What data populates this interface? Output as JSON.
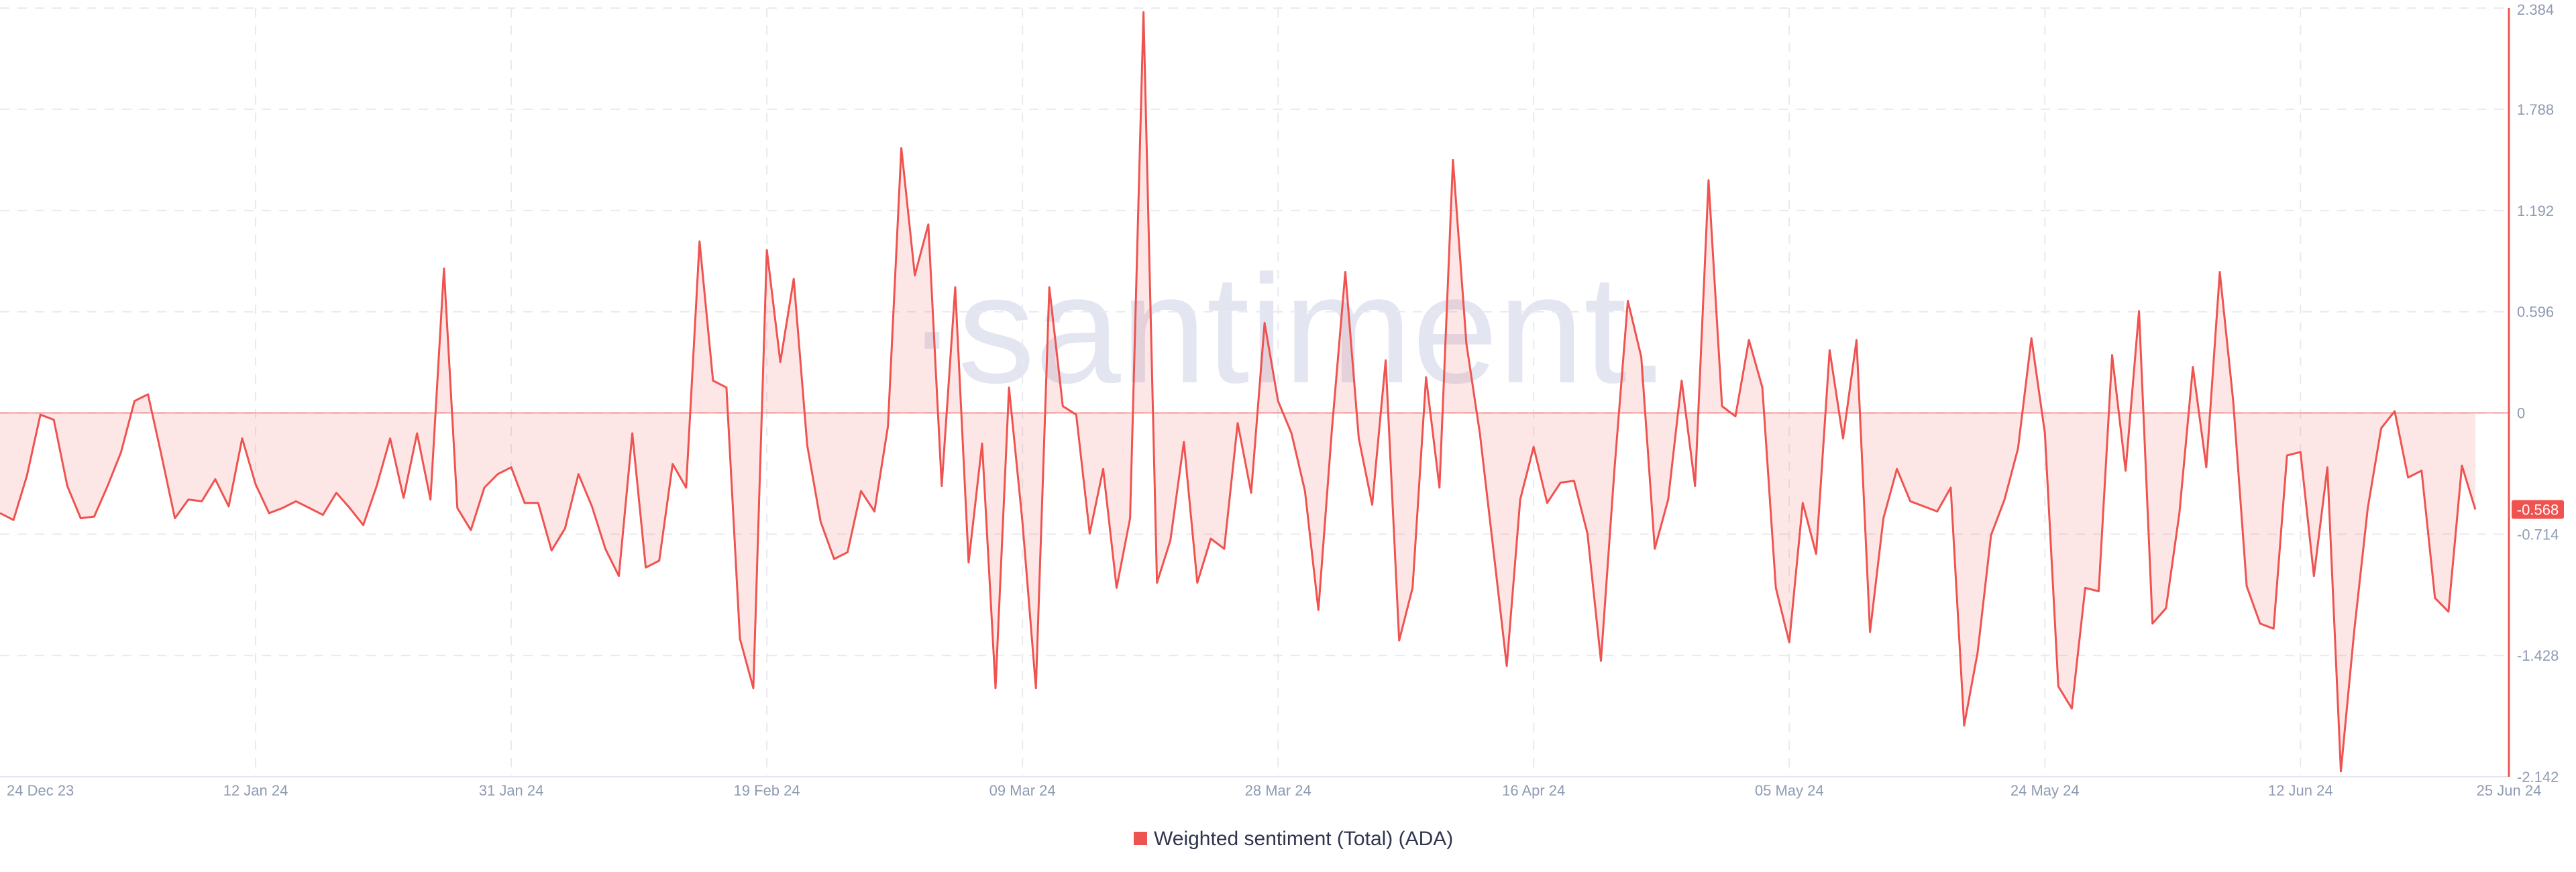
{
  "chart_data": {
    "type": "line",
    "watermark": "·santiment.",
    "x": [
      "2023-12-24",
      "2023-12-25",
      "2023-12-26",
      "2023-12-27",
      "2023-12-28",
      "2023-12-29",
      "2023-12-30",
      "2023-12-31",
      "2024-01-01",
      "2024-01-02",
      "2024-01-03",
      "2024-01-04",
      "2024-01-05",
      "2024-01-06",
      "2024-01-07",
      "2024-01-08",
      "2024-01-09",
      "2024-01-10",
      "2024-01-11",
      "2024-01-12",
      "2024-01-13",
      "2024-01-14",
      "2024-01-15",
      "2024-01-16",
      "2024-01-17",
      "2024-01-18",
      "2024-01-19",
      "2024-01-20",
      "2024-01-21",
      "2024-01-22",
      "2024-01-23",
      "2024-01-24",
      "2024-01-25",
      "2024-01-26",
      "2024-01-27",
      "2024-01-28",
      "2024-01-29",
      "2024-01-30",
      "2024-01-31",
      "2024-02-01",
      "2024-02-02",
      "2024-02-03",
      "2024-02-04",
      "2024-02-05",
      "2024-02-06",
      "2024-02-07",
      "2024-02-08",
      "2024-02-09",
      "2024-02-10",
      "2024-02-11",
      "2024-02-12",
      "2024-02-13",
      "2024-02-14",
      "2024-02-15",
      "2024-02-16",
      "2024-02-17",
      "2024-02-18",
      "2024-02-19",
      "2024-02-20",
      "2024-02-21",
      "2024-02-22",
      "2024-02-23",
      "2024-02-24",
      "2024-02-25",
      "2024-02-26",
      "2024-02-27",
      "2024-02-28",
      "2024-02-29",
      "2024-03-01",
      "2024-03-02",
      "2024-03-03",
      "2024-03-04",
      "2024-03-05",
      "2024-03-06",
      "2024-03-07",
      "2024-03-08",
      "2024-03-09",
      "2024-03-10",
      "2024-03-11",
      "2024-03-12",
      "2024-03-13",
      "2024-03-14",
      "2024-03-15",
      "2024-03-16",
      "2024-03-17",
      "2024-03-18",
      "2024-03-19",
      "2024-03-20",
      "2024-03-21",
      "2024-03-22",
      "2024-03-23",
      "2024-03-24",
      "2024-03-25",
      "2024-03-26",
      "2024-03-27",
      "2024-03-28",
      "2024-03-29",
      "2024-03-30",
      "2024-03-31",
      "2024-04-01",
      "2024-04-02",
      "2024-04-03",
      "2024-04-04",
      "2024-04-05",
      "2024-04-06",
      "2024-04-07",
      "2024-04-08",
      "2024-04-09",
      "2024-04-10",
      "2024-04-11",
      "2024-04-12",
      "2024-04-13",
      "2024-04-14",
      "2024-04-15",
      "2024-04-16",
      "2024-04-17",
      "2024-04-18",
      "2024-04-19",
      "2024-04-20",
      "2024-04-21",
      "2024-04-22",
      "2024-04-23",
      "2024-04-24",
      "2024-04-25",
      "2024-04-26",
      "2024-04-27",
      "2024-04-28",
      "2024-04-29",
      "2024-04-30",
      "2024-05-01",
      "2024-05-02",
      "2024-05-03",
      "2024-05-04",
      "2024-05-05",
      "2024-05-06",
      "2024-05-07",
      "2024-05-08",
      "2024-05-09",
      "2024-05-10",
      "2024-05-11",
      "2024-05-12",
      "2024-05-13",
      "2024-05-14",
      "2024-05-15",
      "2024-05-16",
      "2024-05-17",
      "2024-05-18",
      "2024-05-19",
      "2024-05-20",
      "2024-05-21",
      "2024-05-22",
      "2024-05-23",
      "2024-05-24",
      "2024-05-25",
      "2024-05-26",
      "2024-05-27",
      "2024-05-28",
      "2024-05-29",
      "2024-05-30",
      "2024-05-31",
      "2024-06-01",
      "2024-06-02",
      "2024-06-03",
      "2024-06-04",
      "2024-06-05",
      "2024-06-06",
      "2024-06-07",
      "2024-06-08",
      "2024-06-09",
      "2024-06-10",
      "2024-06-11",
      "2024-06-12",
      "2024-06-13",
      "2024-06-14",
      "2024-06-15",
      "2024-06-16",
      "2024-06-17",
      "2024-06-18",
      "2024-06-19",
      "2024-06-20",
      "2024-06-21",
      "2024-06-22",
      "2024-06-23",
      "2024-06-24",
      "2024-06-25"
    ],
    "series": [
      {
        "name": "Weighted sentiment (Total) (ADA)",
        "color": "#ef5350",
        "values": [
          -0.59,
          -0.63,
          -0.37,
          -0.01,
          -0.04,
          -0.43,
          -0.62,
          -0.61,
          -0.43,
          -0.23,
          0.07,
          0.11,
          -0.25,
          -0.62,
          -0.51,
          -0.52,
          -0.39,
          -0.55,
          -0.15,
          -0.42,
          -0.59,
          -0.56,
          -0.52,
          -0.56,
          -0.6,
          -0.47,
          -0.56,
          -0.66,
          -0.43,
          -0.15,
          -0.5,
          -0.12,
          -0.51,
          0.85,
          -0.56,
          -0.69,
          -0.44,
          -0.36,
          -0.32,
          -0.53,
          -0.53,
          -0.81,
          -0.68,
          -0.36,
          -0.55,
          -0.8,
          -0.96,
          -0.12,
          -0.91,
          -0.87,
          -0.3,
          -0.44,
          1.01,
          0.19,
          0.15,
          -1.33,
          -1.62,
          0.96,
          0.3,
          0.79,
          -0.19,
          -0.64,
          -0.86,
          -0.82,
          -0.46,
          -0.58,
          -0.08,
          1.56,
          0.81,
          1.11,
          -0.43,
          0.74,
          -0.88,
          -0.18,
          -1.62,
          0.15,
          -0.64,
          -1.62,
          0.74,
          0.04,
          -0.01,
          -0.71,
          -0.33,
          -1.03,
          -0.62,
          2.36,
          -1.0,
          -0.75,
          -0.17,
          -1.0,
          -0.74,
          -0.8,
          -0.06,
          -0.47,
          0.53,
          0.07,
          -0.12,
          -0.46,
          -1.16,
          -0.1,
          0.83,
          -0.15,
          -0.54,
          0.31,
          -1.34,
          -1.03,
          0.21,
          -0.44,
          1.49,
          0.41,
          -0.12,
          -0.8,
          -1.49,
          -0.51,
          -0.2,
          -0.53,
          -0.41,
          -0.4,
          -0.71,
          -1.46,
          -0.34,
          0.66,
          0.33,
          -0.8,
          -0.51,
          0.19,
          -0.43,
          1.37,
          0.04,
          -0.02,
          0.43,
          0.15,
          -1.03,
          -1.35,
          -0.53,
          -0.83,
          0.37,
          -0.15,
          0.43,
          -1.29,
          -0.62,
          -0.33,
          -0.52,
          -0.55,
          -0.58,
          -0.44,
          -1.84,
          -1.41,
          -0.72,
          -0.51,
          -0.21,
          0.44,
          -0.12,
          -1.61,
          -1.74,
          -1.03,
          -1.05,
          0.34,
          -0.34,
          0.6,
          -1.24,
          -1.15,
          -0.59,
          0.27,
          -0.32,
          0.83,
          0.07,
          -1.02,
          -1.24,
          -1.27,
          -0.25,
          -0.23,
          -0.96,
          -0.32,
          -2.11,
          -1.28,
          -0.56,
          -0.09,
          0.01,
          -0.38,
          -0.34,
          -1.09,
          -1.17,
          -0.31,
          -0.568
        ]
      }
    ],
    "xlim": [
      "2023-12-24",
      "2024-06-25"
    ],
    "xticks": [
      {
        "value": "2023-12-24",
        "label": "24 Dec 23"
      },
      {
        "value": "2024-01-12",
        "label": "12 Jan 24"
      },
      {
        "value": "2024-01-31",
        "label": "31 Jan 24"
      },
      {
        "value": "2024-02-19",
        "label": "19 Feb 24"
      },
      {
        "value": "2024-03-09",
        "label": "09 Mar 24"
      },
      {
        "value": "2024-03-28",
        "label": "28 Mar 24"
      },
      {
        "value": "2024-04-16",
        "label": "16 Apr 24"
      },
      {
        "value": "2024-05-05",
        "label": "05 May 24"
      },
      {
        "value": "2024-05-24",
        "label": "24 May 24"
      },
      {
        "value": "2024-06-12",
        "label": "12 Jun 24"
      },
      {
        "value": "2024-06-25",
        "label": "25 Jun 24"
      }
    ],
    "ylim": [
      -2.142,
      2.384
    ],
    "yticks": [
      2.384,
      1.788,
      1.192,
      0.596,
      0,
      -0.714,
      -1.428,
      -2.142
    ],
    "grid": true,
    "legend": "bottom"
  }
}
